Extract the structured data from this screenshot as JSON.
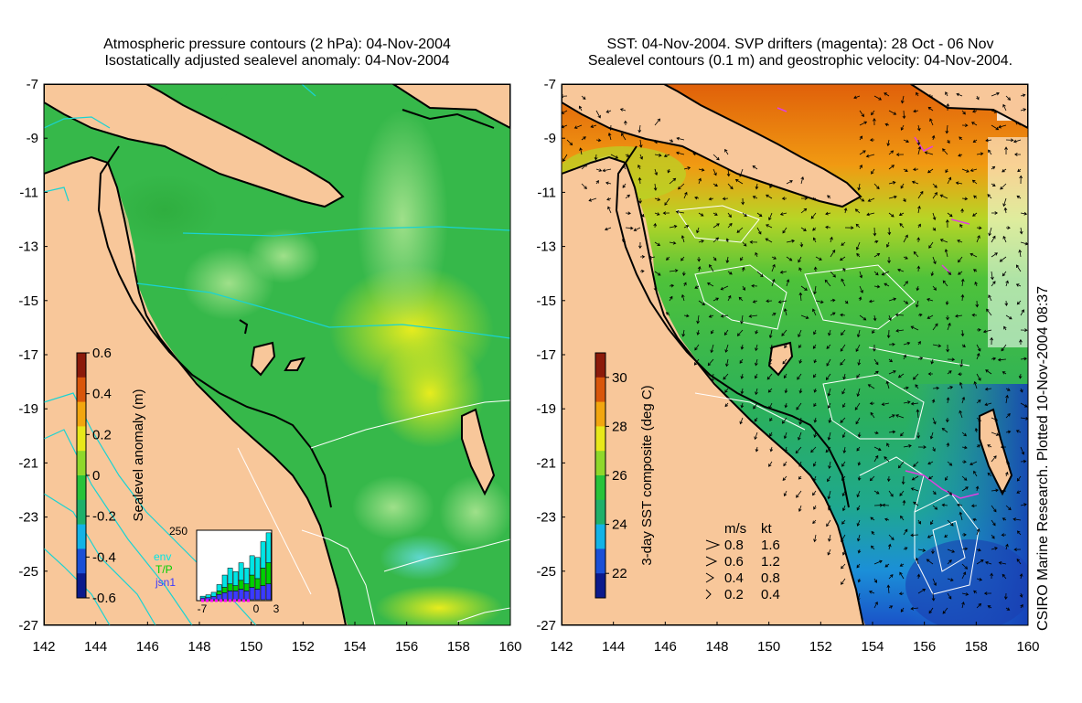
{
  "left_panel": {
    "title_line1": "Atmospheric pressure contours (2 hPa): 04-Nov-2004",
    "title_line2": "Isostatically adjusted sealevel anomaly: 04-Nov-2004",
    "colorbar": {
      "label": "Sealevel anomaly (m)",
      "ticks": [
        "0.6",
        "0.4",
        "0.2",
        "0",
        "-0.2",
        "-0.4",
        "-0.6"
      ],
      "min": -0.6,
      "max": 0.6,
      "colors": [
        "#0b1a8c",
        "#1a4fd6",
        "#13b3e6",
        "#1fb06a",
        "#28c33a",
        "#8fd82b",
        "#e8e81a",
        "#f2a60f",
        "#d9560a",
        "#8c1a0a"
      ]
    },
    "inset": {
      "ymax_label": "250",
      "legend": [
        {
          "label": "env",
          "color": "#00e5e5"
        },
        {
          "label": "T/P",
          "color": "#00d000"
        },
        {
          "label": "jsn1",
          "color": "#3b3bff"
        }
      ],
      "xticks": [
        "-7",
        "0",
        "3"
      ],
      "bars": [
        {
          "cyan": 0.05,
          "green": 0.0,
          "blue": 0.05
        },
        {
          "cyan": 0.08,
          "green": 0.0,
          "blue": 0.06
        },
        {
          "cyan": 0.12,
          "green": 0.0,
          "blue": 0.09
        },
        {
          "cyan": 0.18,
          "green": 0.1,
          "blue": 0.15
        },
        {
          "cyan": 0.35,
          "green": 0.15,
          "blue": 0.2
        },
        {
          "cyan": 0.45,
          "green": 0.2,
          "blue": 0.25
        },
        {
          "cyan": 0.4,
          "green": 0.15,
          "blue": 0.25
        },
        {
          "cyan": 0.5,
          "green": 0.25,
          "blue": 0.3
        },
        {
          "cyan": 0.45,
          "green": 0.2,
          "blue": 0.25
        },
        {
          "cyan": 0.55,
          "green": 0.35,
          "blue": 0.35
        },
        {
          "cyan": 0.6,
          "green": 0.3,
          "blue": 0.3
        },
        {
          "cyan": 0.75,
          "green": 0.5,
          "blue": 0.4
        },
        {
          "cyan": 0.85,
          "green": 0.6,
          "blue": 0.45
        }
      ]
    }
  },
  "right_panel": {
    "title_line1": "SST: 04-Nov-2004. SVP drifters (magenta): 28 Oct - 06 Nov",
    "title_line2": "Sealevel contours (0.1 m) and geostrophic velocity: 04-Nov-2004.",
    "colorbar": {
      "label": "3-day SST composite (deg C)",
      "ticks": [
        "30",
        "28",
        "26",
        "24",
        "22"
      ],
      "min": 21,
      "max": 31,
      "colors": [
        "#0b1a8c",
        "#1a4fd6",
        "#13b3e6",
        "#1fb06a",
        "#28c33a",
        "#8fd82b",
        "#e8e81a",
        "#f2a60f",
        "#d9560a",
        "#8c1a0a"
      ]
    },
    "velocity_legend": {
      "header_ms": "m/s",
      "header_kt": "kt",
      "rows": [
        {
          "ms": "0.8",
          "kt": "1.6"
        },
        {
          "ms": "0.6",
          "kt": "1.2"
        },
        {
          "ms": "0.4",
          "kt": "0.8"
        },
        {
          "ms": "0.2",
          "kt": "0.4"
        }
      ]
    }
  },
  "axes": {
    "lat_ticks": [
      "-7",
      "-9",
      "-11",
      "-13",
      "-15",
      "-17",
      "-19",
      "-21",
      "-23",
      "-25",
      "-27"
    ],
    "lon_ticks": [
      "142",
      "144",
      "146",
      "148",
      "150",
      "152",
      "154",
      "156",
      "158",
      "160"
    ],
    "lon_range": [
      142,
      160
    ],
    "lat_range": [
      -27,
      -7
    ]
  },
  "colors": {
    "land": "#f8c79a",
    "coast": "#000000",
    "pressure_contour": "#19d3d3",
    "sealevel_contour": "#ffffff",
    "drifter": "#e040e0"
  },
  "credit": "CSIRO Marine Research. Plotted 10-Nov-2004 08:37"
}
